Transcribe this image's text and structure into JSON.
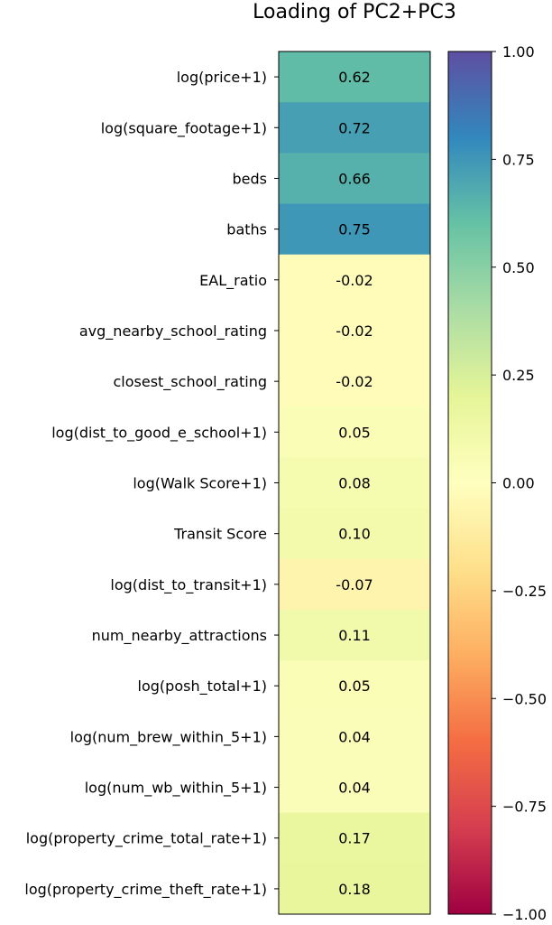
{
  "chart_data": {
    "type": "heatmap",
    "title": "Loading of PC2+PC3",
    "rows": [
      "log(price+1)",
      "log(square_footage+1)",
      "beds",
      "baths",
      "EAL_ratio",
      "avg_nearby_school_rating",
      "closest_school_rating",
      "log(dist_to_good_e_school+1)",
      "log(Walk Score+1)",
      "Transit Score",
      "log(dist_to_transit+1)",
      "num_nearby_attractions",
      "log(posh_total+1)",
      "log(num_brew_within_5+1)",
      "log(num_wb_within_5+1)",
      "log(property_crime_total_rate+1)",
      "log(property_crime_theft_rate+1)"
    ],
    "values": [
      0.62,
      0.72,
      0.66,
      0.75,
      -0.02,
      -0.02,
      -0.02,
      0.05,
      0.08,
      0.1,
      -0.07,
      0.11,
      0.05,
      0.04,
      0.04,
      0.17,
      0.18
    ],
    "value_labels": [
      "0.62",
      "0.72",
      "0.66",
      "0.75",
      "-0.02",
      "-0.02",
      "-0.02",
      "0.05",
      "0.08",
      "0.10",
      "-0.07",
      "0.11",
      "0.05",
      "0.04",
      "0.04",
      "0.17",
      "0.18"
    ],
    "colorscale": "Spectral",
    "colorbar": {
      "range": [
        -1.0,
        1.0
      ],
      "ticks": [
        1.0,
        0.75,
        0.5,
        0.25,
        0.0,
        -0.25,
        -0.5,
        -0.75,
        -1.0
      ],
      "tick_labels": [
        "1.00",
        "0.75",
        "0.50",
        "0.25",
        "0.00",
        "−0.25",
        "−0.50",
        "−0.75",
        "−1.00"
      ]
    }
  }
}
